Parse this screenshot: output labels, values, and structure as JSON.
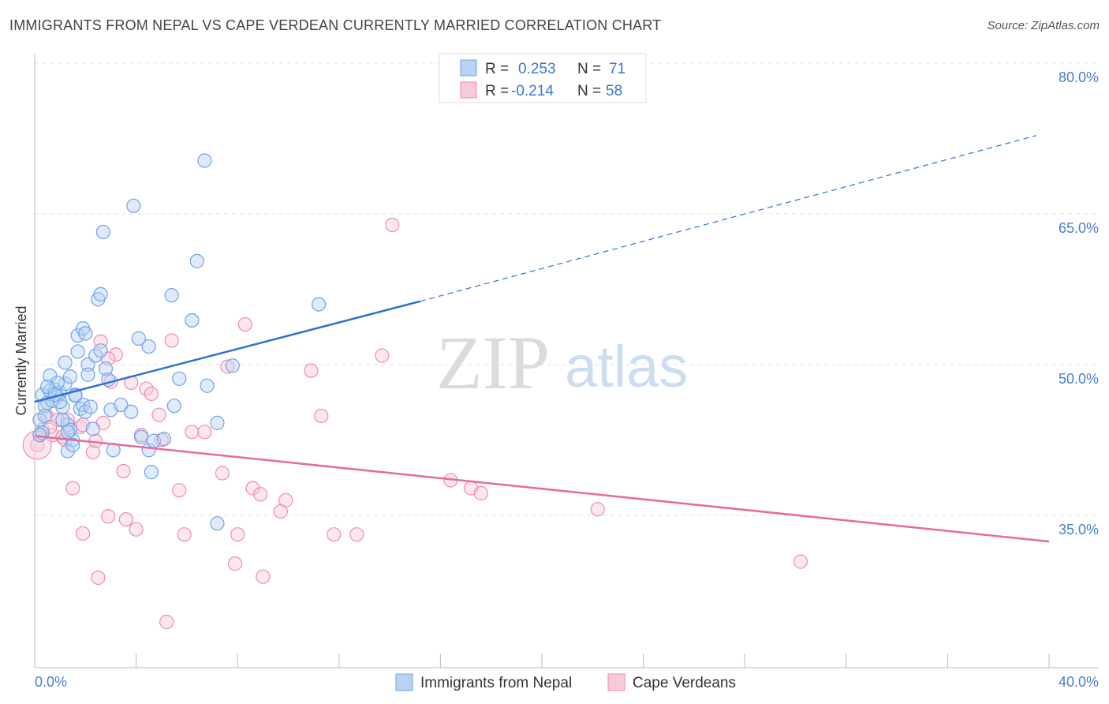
{
  "title": "IMMIGRANTS FROM NEPAL VS CAPE VERDEAN CURRENTLY MARRIED CORRELATION CHART",
  "source": "Source: ZipAtlas.com",
  "watermark": {
    "zip": "ZIP",
    "atlas": "atlas"
  },
  "colors": {
    "blue": "#6fa3e6",
    "blue_fill": "#b9d2f3",
    "blue_line": "#2d72d2",
    "pink": "#f08cb0",
    "pink_fill": "#f9c9da",
    "pink_line": "#e8699a",
    "tick_label": "#4a7fd0"
  },
  "legend": {
    "rows": [
      {
        "r_label": "R =",
        "r_value": "0.253",
        "n_label": "N =",
        "n_value": "71"
      },
      {
        "r_label": "R =",
        "r_value": "-0.214",
        "n_label": "N =",
        "n_value": "58"
      }
    ]
  },
  "chart_data": {
    "type": "scatter",
    "title": "IMMIGRANTS FROM NEPAL VS CAPE VERDEAN CURRENTLY MARRIED CORRELATION CHART",
    "xlabel": "",
    "ylabel": "Currently Married",
    "xlim": [
      0,
      40
    ],
    "ylim": [
      20,
      82
    ],
    "x_tick_labels": [
      "0.0%",
      "40.0%"
    ],
    "y_ticks": [
      35,
      50,
      65,
      80
    ],
    "y_tick_labels": [
      "35.0%",
      "50.0%",
      "65.0%",
      "80.0%"
    ],
    "grid": true,
    "legend_position": "top-center",
    "series": [
      {
        "name": "Immigrants from Nepal",
        "color": "blue",
        "r": 0.253,
        "n": 71,
        "trend": {
          "x0": 0,
          "y0": 46.3,
          "x1": 15.2,
          "y1": 56.3,
          "dash_to_x": 39.5,
          "dash_to_y": 72.8
        },
        "points": [
          [
            0.3,
            47.0
          ],
          [
            0.5,
            46.2
          ],
          [
            0.6,
            48.9
          ],
          [
            0.8,
            47.5
          ],
          [
            0.9,
            46.8
          ],
          [
            1.0,
            47.2
          ],
          [
            1.1,
            45.8
          ],
          [
            1.2,
            48.1
          ],
          [
            0.4,
            45.9
          ],
          [
            0.7,
            46.4
          ],
          [
            0.2,
            44.5
          ],
          [
            0.3,
            43.2
          ],
          [
            1.3,
            44.0
          ],
          [
            1.5,
            42.5
          ],
          [
            1.4,
            43.5
          ],
          [
            1.6,
            47.0
          ],
          [
            1.8,
            45.6
          ],
          [
            1.9,
            46.0
          ],
          [
            2.0,
            45.3
          ],
          [
            2.2,
            45.8
          ],
          [
            1.2,
            50.2
          ],
          [
            1.7,
            51.3
          ],
          [
            2.1,
            50.0
          ],
          [
            2.4,
            50.9
          ],
          [
            2.6,
            51.4
          ],
          [
            2.8,
            49.6
          ],
          [
            1.7,
            52.9
          ],
          [
            1.9,
            53.6
          ],
          [
            2.0,
            53.1
          ],
          [
            0.9,
            48.2
          ],
          [
            1.4,
            48.8
          ],
          [
            0.6,
            47.4
          ],
          [
            2.5,
            56.5
          ],
          [
            2.6,
            57.0
          ],
          [
            2.7,
            63.2
          ],
          [
            3.0,
            45.5
          ],
          [
            3.1,
            41.5
          ],
          [
            3.8,
            45.3
          ],
          [
            4.1,
            52.6
          ],
          [
            4.5,
            51.8
          ],
          [
            4.2,
            42.8
          ],
          [
            4.5,
            41.5
          ],
          [
            4.7,
            42.4
          ],
          [
            5.1,
            42.6
          ],
          [
            5.5,
            45.9
          ],
          [
            5.7,
            48.6
          ],
          [
            5.4,
            56.9
          ],
          [
            6.2,
            54.4
          ],
          [
            6.4,
            60.3
          ],
          [
            6.7,
            70.3
          ],
          [
            6.8,
            47.9
          ],
          [
            7.2,
            44.2
          ],
          [
            7.2,
            34.2
          ],
          [
            7.8,
            49.9
          ],
          [
            3.9,
            65.8
          ],
          [
            4.6,
            39.3
          ],
          [
            11.2,
            56.0
          ],
          [
            1.3,
            41.4
          ],
          [
            1.5,
            42.0
          ],
          [
            0.5,
            47.8
          ],
          [
            1.0,
            46.3
          ],
          [
            0.8,
            47.0
          ],
          [
            1.1,
            44.5
          ],
          [
            1.3,
            43.3
          ],
          [
            2.3,
            43.6
          ],
          [
            3.4,
            46.0
          ],
          [
            2.9,
            48.5
          ],
          [
            1.6,
            46.9
          ],
          [
            0.4,
            44.9
          ],
          [
            0.2,
            43.0
          ],
          [
            2.1,
            49.0
          ]
        ]
      },
      {
        "name": "Cape Verdeans",
        "color": "pink",
        "r": -0.214,
        "n": 58,
        "trend": {
          "x0": 0,
          "y0": 42.9,
          "x1": 40,
          "y1": 32.4
        },
        "points": [
          [
            0.1,
            42.0
          ],
          [
            0.3,
            43.5
          ],
          [
            0.5,
            44.8
          ],
          [
            0.7,
            43.0
          ],
          [
            0.9,
            44.5
          ],
          [
            1.1,
            42.8
          ],
          [
            1.3,
            44.5
          ],
          [
            1.5,
            37.7
          ],
          [
            1.8,
            43.8
          ],
          [
            1.9,
            33.2
          ],
          [
            2.3,
            41.3
          ],
          [
            2.5,
            28.8
          ],
          [
            2.7,
            44.2
          ],
          [
            2.9,
            34.9
          ],
          [
            3.0,
            48.3
          ],
          [
            3.2,
            51.0
          ],
          [
            3.5,
            39.4
          ],
          [
            3.6,
            34.6
          ],
          [
            3.8,
            48.2
          ],
          [
            4.0,
            33.6
          ],
          [
            4.2,
            43.0
          ],
          [
            4.4,
            47.6
          ],
          [
            4.6,
            47.1
          ],
          [
            4.9,
            45.0
          ],
          [
            5.0,
            42.5
          ],
          [
            5.2,
            24.4
          ],
          [
            5.4,
            52.4
          ],
          [
            5.7,
            37.5
          ],
          [
            5.9,
            33.1
          ],
          [
            6.2,
            43.3
          ],
          [
            6.7,
            43.3
          ],
          [
            7.4,
            39.2
          ],
          [
            7.6,
            49.8
          ],
          [
            7.9,
            30.2
          ],
          [
            8.0,
            33.1
          ],
          [
            8.3,
            54.0
          ],
          [
            8.6,
            37.7
          ],
          [
            8.9,
            37.1
          ],
          [
            9.0,
            28.9
          ],
          [
            9.7,
            35.4
          ],
          [
            9.9,
            36.5
          ],
          [
            10.9,
            49.4
          ],
          [
            11.3,
            44.9
          ],
          [
            11.8,
            33.1
          ],
          [
            12.7,
            33.1
          ],
          [
            13.7,
            50.9
          ],
          [
            14.1,
            63.9
          ],
          [
            16.4,
            38.5
          ],
          [
            17.2,
            37.7
          ],
          [
            17.6,
            37.2
          ],
          [
            22.2,
            35.6
          ],
          [
            30.2,
            30.4
          ],
          [
            2.9,
            50.6
          ],
          [
            2.6,
            52.3
          ],
          [
            1.9,
            44.0
          ],
          [
            1.2,
            42.5
          ],
          [
            0.6,
            43.8
          ],
          [
            2.4,
            42.4
          ]
        ]
      }
    ]
  }
}
